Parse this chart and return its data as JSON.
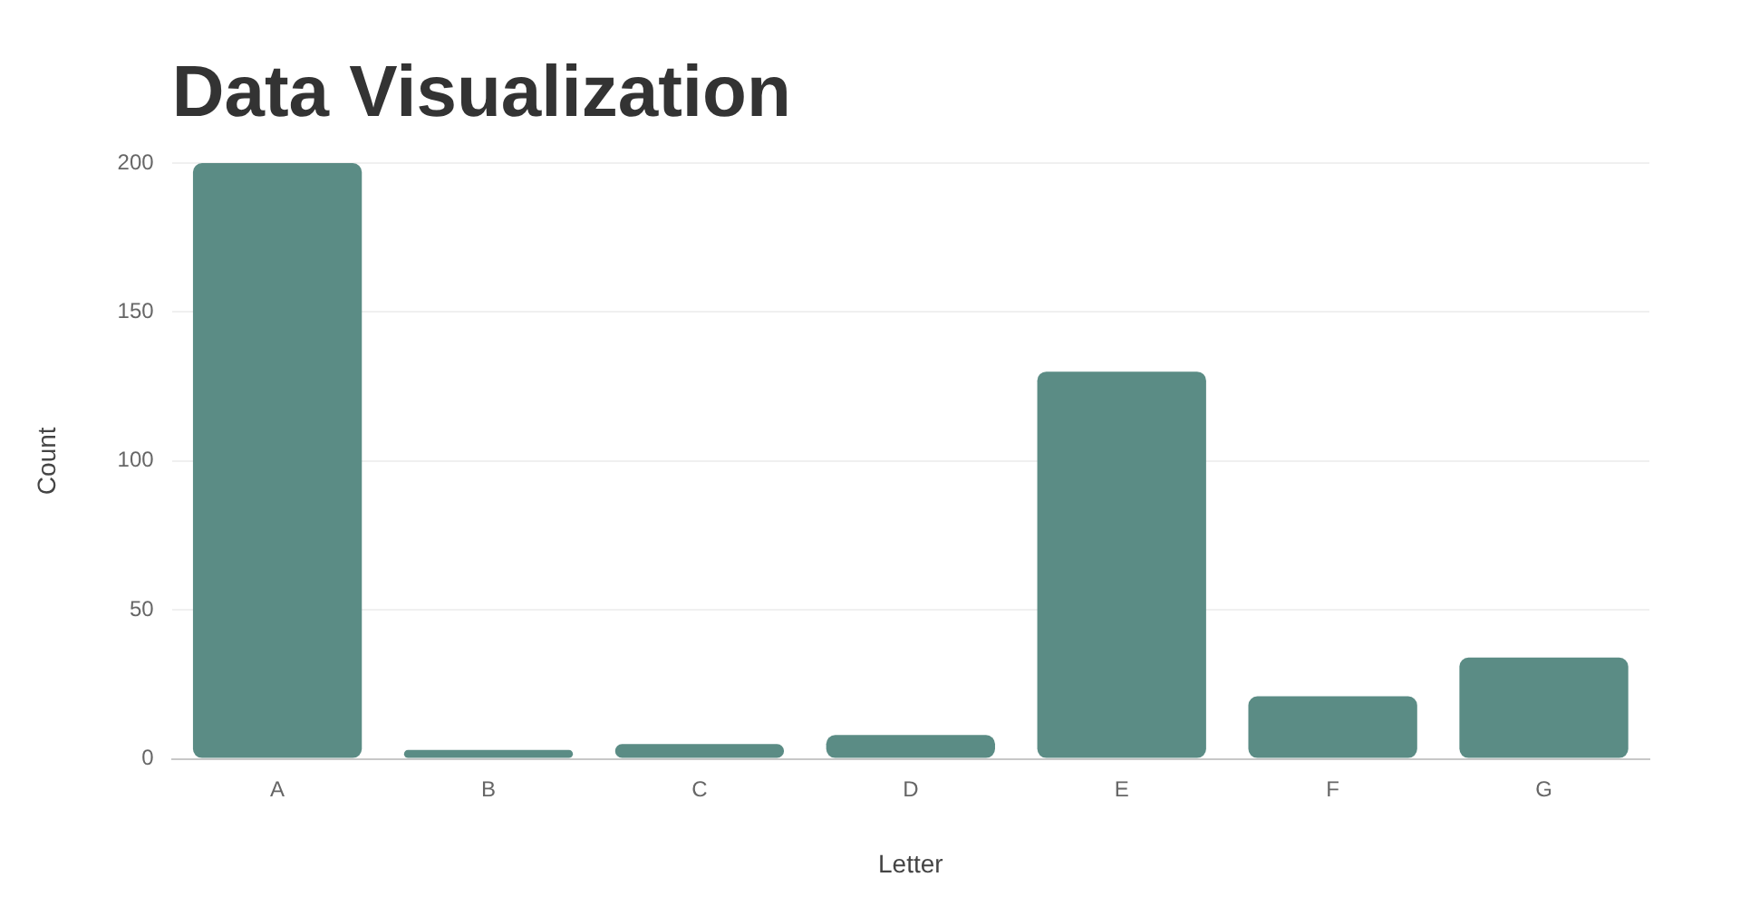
{
  "chart_data": {
    "type": "bar",
    "title": "Data Visualization",
    "xlabel": "Letter",
    "ylabel": "Count",
    "categories": [
      "A",
      "B",
      "C",
      "D",
      "E",
      "F",
      "G"
    ],
    "values": [
      200,
      3,
      5,
      8,
      130,
      21,
      34
    ],
    "color": "#5b8c85",
    "ylim": [
      0,
      200
    ],
    "yticks": [
      0,
      50,
      100,
      150,
      200
    ],
    "grid": "y"
  }
}
